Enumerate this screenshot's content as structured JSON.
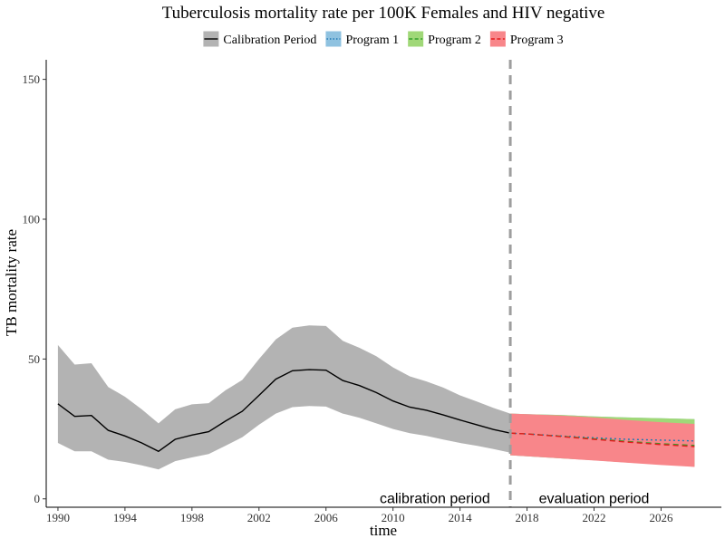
{
  "chart_data": {
    "type": "line",
    "title": "Tuberculosis mortality rate per 100K Females and HIV negative",
    "xlabel": "time",
    "ylabel": "TB mortality rate",
    "xlim": [
      1989.3,
      2029.6
    ],
    "ylim": [
      -3,
      157
    ],
    "x_ticks": [
      1990,
      1994,
      1998,
      2002,
      2006,
      2010,
      2014,
      2018,
      2022,
      2026
    ],
    "y_ticks": [
      0,
      50,
      100,
      150
    ],
    "grid": false,
    "legend_position": "top",
    "legend": [
      "Calibration Period",
      "Program 1",
      "Program 2",
      "Program 3"
    ],
    "vline": {
      "x": 2017,
      "style": "dashed",
      "color": "#9e9e9e"
    },
    "annotations": [
      {
        "text": "calibration period",
        "x": 2012.5,
        "y": 0
      },
      {
        "text": "evaluation period",
        "x": 2022,
        "y": 0
      }
    ],
    "series": [
      {
        "name": "Calibration Period",
        "color": "#000000",
        "band_color": "#b3b3b3",
        "line_style": "solid",
        "x": [
          1990,
          1991,
          1992,
          1993,
          1994,
          1995,
          1996,
          1997,
          1998,
          1999,
          2000,
          2001,
          2002,
          2003,
          2004,
          2005,
          2006,
          2007,
          2008,
          2009,
          2010,
          2011,
          2012,
          2013,
          2014,
          2015,
          2016,
          2017
        ],
        "mean": [
          34,
          29.5,
          29.8,
          24.5,
          22.5,
          20,
          17,
          21.3,
          22.8,
          24,
          27.8,
          31.3,
          37,
          42.8,
          45.8,
          46.2,
          46,
          42.3,
          40.5,
          38,
          35,
          32.8,
          31.7,
          30,
          28.2,
          26.5,
          24.8,
          23.5
        ],
        "upper": [
          55,
          48,
          48.5,
          40,
          36.5,
          32,
          27,
          32,
          33.8,
          34.2,
          38.8,
          42.5,
          50,
          57,
          61.2,
          62,
          61.8,
          56.5,
          54,
          51,
          47,
          43.8,
          42,
          39.8,
          37,
          34.8,
          32.5,
          30.5
        ],
        "lower": [
          20,
          17,
          17,
          14,
          13.2,
          12,
          10.5,
          13.5,
          14.8,
          16,
          19,
          22,
          26.5,
          30.5,
          32.8,
          33.2,
          33,
          30.5,
          29,
          27,
          25,
          23.5,
          22.5,
          21.2,
          20,
          19,
          17.8,
          16.5
        ]
      },
      {
        "name": "Program 1",
        "color": "#1f78b4",
        "band_color": "#8fc2e0",
        "line_style": "dotted",
        "x": [
          2017,
          2018,
          2020,
          2022,
          2024,
          2026,
          2028
        ],
        "mean": [
          23.5,
          23.2,
          22.5,
          21.8,
          21.3,
          21,
          20.7
        ],
        "upper": [
          30.5,
          30.3,
          30,
          29.5,
          29.1,
          28.8,
          28.5
        ],
        "lower": [
          15.6,
          15.2,
          14.5,
          13.8,
          13,
          12.3,
          11.8
        ]
      },
      {
        "name": "Program 2",
        "color": "#33a02c",
        "band_color": "#a0d878",
        "line_style": "dashed",
        "x": [
          2017,
          2018,
          2020,
          2022,
          2024,
          2026,
          2028
        ],
        "mean": [
          23.5,
          23.2,
          22.4,
          21.5,
          20.5,
          19.7,
          19.1
        ],
        "upper": [
          30.5,
          30.3,
          30,
          29.5,
          29.1,
          28.8,
          28.5
        ],
        "lower": [
          15.6,
          15.2,
          14.5,
          13.8,
          13,
          12.3,
          11.6
        ]
      },
      {
        "name": "Program 3",
        "color": "#e31a1c",
        "band_color": "#f8868a",
        "line_style": "dashed",
        "x": [
          2017,
          2018,
          2020,
          2022,
          2024,
          2026,
          2028
        ],
        "mean": [
          23.5,
          23.2,
          22.3,
          21.3,
          20.3,
          19.4,
          18.7
        ],
        "upper": [
          30.5,
          30.3,
          29.8,
          29.1,
          28.2,
          27.4,
          26.8
        ],
        "lower": [
          15.6,
          15.2,
          14.5,
          13.7,
          12.9,
          12.1,
          11.4
        ]
      }
    ]
  }
}
